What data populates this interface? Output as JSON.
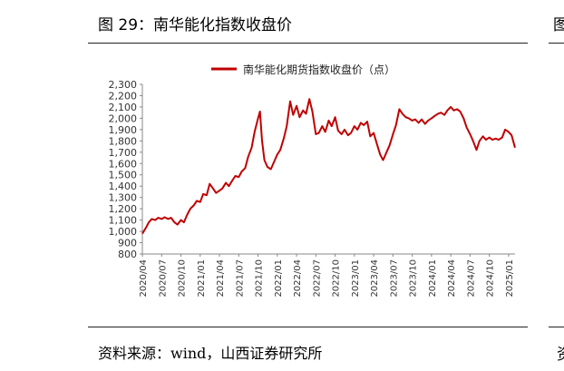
{
  "figure": {
    "title": "图 29：南华能化指数收盘价",
    "source": "资料来源：wind，山西证券研究所",
    "edge_glyph_top": "图",
    "edge_glyph_bottom": "资"
  },
  "chart_data": {
    "type": "line",
    "title": "",
    "xlabel": "",
    "ylabel": "",
    "ylim": [
      800,
      2300
    ],
    "yticks": [
      800,
      900,
      1000,
      1100,
      1200,
      1300,
      1400,
      1500,
      1600,
      1700,
      1800,
      1900,
      2000,
      2100,
      2200,
      2300
    ],
    "ytick_labels": [
      "800",
      "900",
      "1,000",
      "1,100",
      "1,200",
      "1,300",
      "1,400",
      "1,500",
      "1,600",
      "1,700",
      "1,800",
      "1,900",
      "2,000",
      "2,100",
      "2,200",
      "2,300"
    ],
    "xticks": [
      "2020/04",
      "2020/07",
      "2020/10",
      "2021/01",
      "2021/04",
      "2021/07",
      "2021/10",
      "2022/01",
      "2022/04",
      "2022/07",
      "2022/10",
      "2023/01",
      "2023/04",
      "2023/07",
      "2023/10",
      "2024/01",
      "2024/04",
      "2024/07",
      "2024/10",
      "2025/01"
    ],
    "x_range": [
      "2020/04",
      "2025/02"
    ],
    "grid": false,
    "legend": {
      "position": "top",
      "entries": [
        "南华能化期货指数收盘价（点）"
      ]
    },
    "colors": {
      "series": "#c00000",
      "axis": "#888888"
    },
    "series": [
      {
        "name": "南华能化期货指数收盘价（点）",
        "points": [
          [
            "2020/04",
            980
          ],
          [
            "2020/04/20",
            1040
          ],
          [
            "2020/05",
            1080
          ],
          [
            "2020/05/15",
            1110
          ],
          [
            "2020/06",
            1100
          ],
          [
            "2020/06/15",
            1120
          ],
          [
            "2020/07",
            1110
          ],
          [
            "2020/07/15",
            1125
          ],
          [
            "2020/08",
            1110
          ],
          [
            "2020/08/15",
            1120
          ],
          [
            "2020/09",
            1080
          ],
          [
            "2020/09/15",
            1060
          ],
          [
            "2020/10",
            1100
          ],
          [
            "2020/10/15",
            1080
          ],
          [
            "2020/11",
            1150
          ],
          [
            "2020/11/15",
            1200
          ],
          [
            "2020/12",
            1230
          ],
          [
            "2020/12/15",
            1270
          ],
          [
            "2021/01",
            1260
          ],
          [
            "2021/01/15",
            1330
          ],
          [
            "2021/02",
            1320
          ],
          [
            "2021/02/15",
            1420
          ],
          [
            "2021/03",
            1380
          ],
          [
            "2021/03/15",
            1340
          ],
          [
            "2021/04",
            1360
          ],
          [
            "2021/04/15",
            1380
          ],
          [
            "2021/05",
            1430
          ],
          [
            "2021/05/15",
            1400
          ],
          [
            "2021/06",
            1450
          ],
          [
            "2021/06/15",
            1490
          ],
          [
            "2021/07",
            1480
          ],
          [
            "2021/07/15",
            1530
          ],
          [
            "2021/08",
            1560
          ],
          [
            "2021/08/15",
            1660
          ],
          [
            "2021/09",
            1740
          ],
          [
            "2021/09/15",
            1880
          ],
          [
            "2021/10",
            2000
          ],
          [
            "2021/10/10",
            2060
          ],
          [
            "2021/10/20",
            1800
          ],
          [
            "2021/11",
            1630
          ],
          [
            "2021/11/15",
            1570
          ],
          [
            "2021/12",
            1550
          ],
          [
            "2021/12/15",
            1610
          ],
          [
            "2022/01",
            1680
          ],
          [
            "2022/01/15",
            1720
          ],
          [
            "2022/02",
            1820
          ],
          [
            "2022/02/15",
            1930
          ],
          [
            "2022/03",
            2150
          ],
          [
            "2022/03/15",
            2030
          ],
          [
            "2022/04",
            2110
          ],
          [
            "2022/04/15",
            2010
          ],
          [
            "2022/05",
            2070
          ],
          [
            "2022/05/15",
            2040
          ],
          [
            "2022/06",
            2170
          ],
          [
            "2022/06/15",
            2060
          ],
          [
            "2022/07",
            1860
          ],
          [
            "2022/07/15",
            1870
          ],
          [
            "2022/08",
            1930
          ],
          [
            "2022/08/15",
            1880
          ],
          [
            "2022/09",
            1980
          ],
          [
            "2022/09/15",
            1930
          ],
          [
            "2022/10",
            2010
          ],
          [
            "2022/10/15",
            1890
          ],
          [
            "2022/11",
            1860
          ],
          [
            "2022/11/15",
            1900
          ],
          [
            "2022/12",
            1850
          ],
          [
            "2022/12/15",
            1870
          ],
          [
            "2023/01",
            1930
          ],
          [
            "2023/01/15",
            1900
          ],
          [
            "2023/02",
            1960
          ],
          [
            "2023/02/15",
            1940
          ],
          [
            "2023/03",
            1970
          ],
          [
            "2023/03/15",
            1840
          ],
          [
            "2023/04",
            1870
          ],
          [
            "2023/04/15",
            1780
          ],
          [
            "2023/05",
            1680
          ],
          [
            "2023/05/15",
            1630
          ],
          [
            "2023/06",
            1700
          ],
          [
            "2023/06/15",
            1760
          ],
          [
            "2023/07",
            1860
          ],
          [
            "2023/07/15",
            1940
          ],
          [
            "2023/08",
            2080
          ],
          [
            "2023/08/15",
            2040
          ],
          [
            "2023/09",
            2010
          ],
          [
            "2023/09/15",
            2000
          ],
          [
            "2023/10",
            1980
          ],
          [
            "2023/10/15",
            1990
          ],
          [
            "2023/11",
            1960
          ],
          [
            "2023/11/15",
            1990
          ],
          [
            "2023/12",
            1950
          ],
          [
            "2023/12/15",
            1980
          ],
          [
            "2024/01",
            2000
          ],
          [
            "2024/01/15",
            2020
          ],
          [
            "2024/02",
            2040
          ],
          [
            "2024/02/15",
            2050
          ],
          [
            "2024/03",
            2030
          ],
          [
            "2024/03/15",
            2070
          ],
          [
            "2024/04",
            2100
          ],
          [
            "2024/04/15",
            2070
          ],
          [
            "2024/05",
            2080
          ],
          [
            "2024/05/15",
            2060
          ],
          [
            "2024/06",
            2000
          ],
          [
            "2024/06/15",
            1920
          ],
          [
            "2024/07",
            1860
          ],
          [
            "2024/07/15",
            1800
          ],
          [
            "2024/08",
            1720
          ],
          [
            "2024/08/15",
            1800
          ],
          [
            "2024/09",
            1840
          ],
          [
            "2024/09/15",
            1810
          ],
          [
            "2024/10",
            1830
          ],
          [
            "2024/10/15",
            1810
          ],
          [
            "2024/11",
            1820
          ],
          [
            "2024/11/15",
            1810
          ],
          [
            "2024/12",
            1830
          ],
          [
            "2024/12/15",
            1900
          ],
          [
            "2025/01",
            1880
          ],
          [
            "2025/01/15",
            1850
          ],
          [
            "2025/02",
            1740
          ]
        ]
      }
    ]
  }
}
